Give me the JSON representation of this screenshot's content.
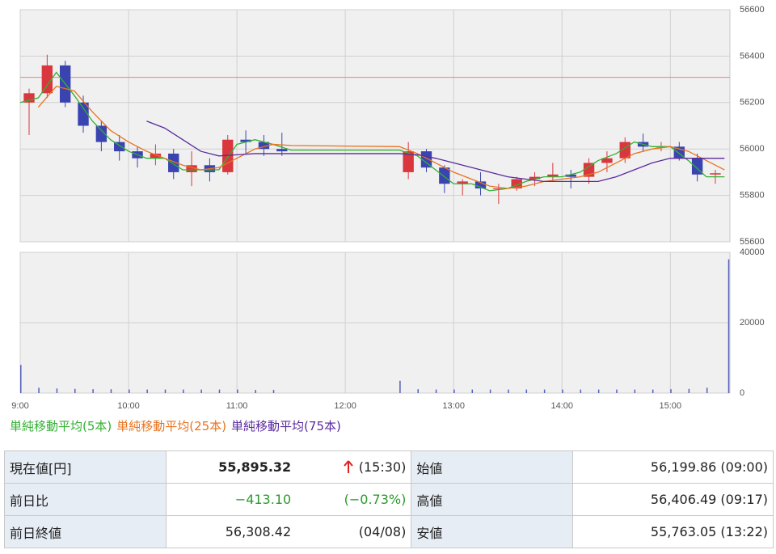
{
  "chart_data": {
    "type": "candlestick",
    "up_color": "#d9363e",
    "down_color": "#3a44b0",
    "grid": true,
    "xlim": [
      "9:00",
      "15:33"
    ],
    "xticks": [
      "9:00",
      "10:00",
      "11:00",
      "12:00",
      "13:00",
      "14:00",
      "15:00"
    ],
    "ylim": [
      55600,
      56600
    ],
    "yticks": [
      55600,
      55800,
      56000,
      56200,
      56400,
      56600
    ],
    "reference_line": {
      "value": 56308.42,
      "color": "#f08080"
    },
    "candles": {
      "x": [
        "9:00",
        "9:10",
        "9:20",
        "9:30",
        "9:40",
        "9:50",
        "10:00",
        "10:10",
        "10:20",
        "10:30",
        "10:40",
        "10:50",
        "11:00",
        "11:10",
        "11:20",
        "12:30",
        "12:40",
        "12:50",
        "13:00",
        "13:10",
        "13:20",
        "13:30",
        "13:40",
        "13:50",
        "14:00",
        "14:10",
        "14:20",
        "14:30",
        "14:40",
        "14:50",
        "15:00",
        "15:10",
        "15:20"
      ],
      "open": [
        56200,
        56240,
        56360,
        56200,
        56100,
        56030,
        55990,
        55960,
        55980,
        55900,
        55930,
        55900,
        56040,
        56030,
        56000,
        55900,
        55990,
        55920,
        55850,
        55860,
        55830,
        55830,
        55870,
        55880,
        55890,
        55880,
        55940,
        55960,
        56030,
        56010,
        56010,
        55960,
        55890
      ],
      "high": [
        56260,
        56406,
        56380,
        56230,
        56120,
        56060,
        56010,
        56020,
        56000,
        55990,
        55960,
        56060,
        56080,
        56060,
        56070,
        56030,
        56000,
        55930,
        55870,
        55900,
        55850,
        55880,
        55900,
        55940,
        55910,
        55960,
        55990,
        56050,
        56066,
        56030,
        56030,
        55980,
        55910
      ],
      "low": [
        56060,
        56220,
        56180,
        56070,
        55990,
        55950,
        55920,
        55930,
        55870,
        55840,
        55860,
        55890,
        55980,
        55970,
        55970,
        55870,
        55900,
        55810,
        55800,
        55800,
        55763,
        55820,
        55840,
        55860,
        55830,
        55850,
        55900,
        55940,
        55990,
        55990,
        55950,
        55860,
        55850
      ],
      "close": [
        56240,
        56360,
        56200,
        56100,
        56030,
        55990,
        55960,
        55980,
        55900,
        55930,
        55900,
        56040,
        56030,
        56000,
        55990,
        55990,
        55920,
        55850,
        55860,
        55830,
        55830,
        55870,
        55880,
        55890,
        55880,
        55940,
        55960,
        56030,
        56010,
        56010,
        55960,
        55890,
        55895.32
      ]
    },
    "line_x": [
      "9:00",
      "9:10",
      "9:20",
      "9:30",
      "9:40",
      "9:50",
      "10:00",
      "10:10",
      "10:20",
      "10:30",
      "10:40",
      "10:50",
      "11:00",
      "11:10",
      "11:20",
      "11:30",
      "12:30",
      "12:40",
      "12:50",
      "13:00",
      "13:10",
      "13:20",
      "13:30",
      "13:40",
      "13:50",
      "14:00",
      "14:10",
      "14:20",
      "14:30",
      "14:40",
      "14:50",
      "15:00",
      "15:10",
      "15:20",
      "15:30"
    ],
    "series": [
      {
        "name": "単純移動平均(5本)",
        "color": "#33b033",
        "values": [
          56200,
          56220,
          56330,
          56230,
          56120,
          56040,
          55990,
          55960,
          55960,
          55910,
          55910,
          55910,
          56020,
          56040,
          56020,
          55995,
          55995,
          55970,
          55910,
          55850,
          55850,
          55820,
          55830,
          55860,
          55880,
          55880,
          55900,
          55950,
          55980,
          56030,
          56010,
          56010,
          55950,
          55880,
          55880
        ]
      },
      {
        "name": "単純移動平均(25本)",
        "color": "#e8731e",
        "values": [
          null,
          56180,
          56270,
          56250,
          56160,
          56080,
          56030,
          55990,
          55960,
          55930,
          55910,
          55920,
          55960,
          56000,
          56020,
          56015,
          56010,
          55980,
          55940,
          55900,
          55870,
          55840,
          55830,
          55840,
          55860,
          55870,
          55880,
          55900,
          55940,
          55980,
          56000,
          56010,
          55990,
          55950,
          55910
        ]
      },
      {
        "name": "単純移動平均(75本)",
        "color": "#5a2a9e",
        "values": [
          null,
          null,
          null,
          null,
          null,
          null,
          null,
          56120,
          56090,
          56040,
          55990,
          55970,
          55975,
          55980,
          55980,
          55980,
          55980,
          55975,
          55960,
          55940,
          55920,
          55900,
          55880,
          55870,
          55860,
          55860,
          55860,
          55860,
          55880,
          55910,
          55940,
          55960,
          55960,
          55960,
          55960
        ]
      }
    ],
    "volume": {
      "color": "#5560b8",
      "ylim": [
        0,
        40000
      ],
      "yticks": [
        0,
        20000,
        40000
      ],
      "x": [
        "9:00",
        "9:10",
        "9:20",
        "9:30",
        "9:40",
        "9:50",
        "10:00",
        "10:10",
        "10:20",
        "10:30",
        "10:40",
        "10:50",
        "11:00",
        "11:10",
        "11:20",
        "12:30",
        "12:40",
        "12:50",
        "13:00",
        "13:10",
        "13:20",
        "13:30",
        "13:40",
        "13:50",
        "14:00",
        "14:10",
        "14:20",
        "14:30",
        "14:40",
        "14:50",
        "15:00",
        "15:10",
        "15:20",
        "15:32"
      ],
      "values": [
        8000,
        1500,
        1300,
        1200,
        1100,
        1100,
        1000,
        1000,
        1000,
        1000,
        1000,
        1000,
        1000,
        900,
        900,
        3500,
        1100,
        1000,
        1000,
        1000,
        1000,
        1000,
        1000,
        1000,
        1000,
        1000,
        1000,
        1000,
        1000,
        1000,
        1100,
        1200,
        1500,
        38000
      ]
    }
  },
  "table": {
    "rows": [
      [
        "現在値[円]",
        "55,895.32",
        "(15:30)",
        "始値",
        "56,199.86 (09:00)"
      ],
      [
        "前日比",
        "−413.10",
        "(−0.73%)",
        "高値",
        "56,406.49 (09:17)"
      ],
      [
        "前日終値",
        "56,308.42",
        "(04/08)",
        "安値",
        "55,763.05 (13:22)"
      ]
    ]
  }
}
